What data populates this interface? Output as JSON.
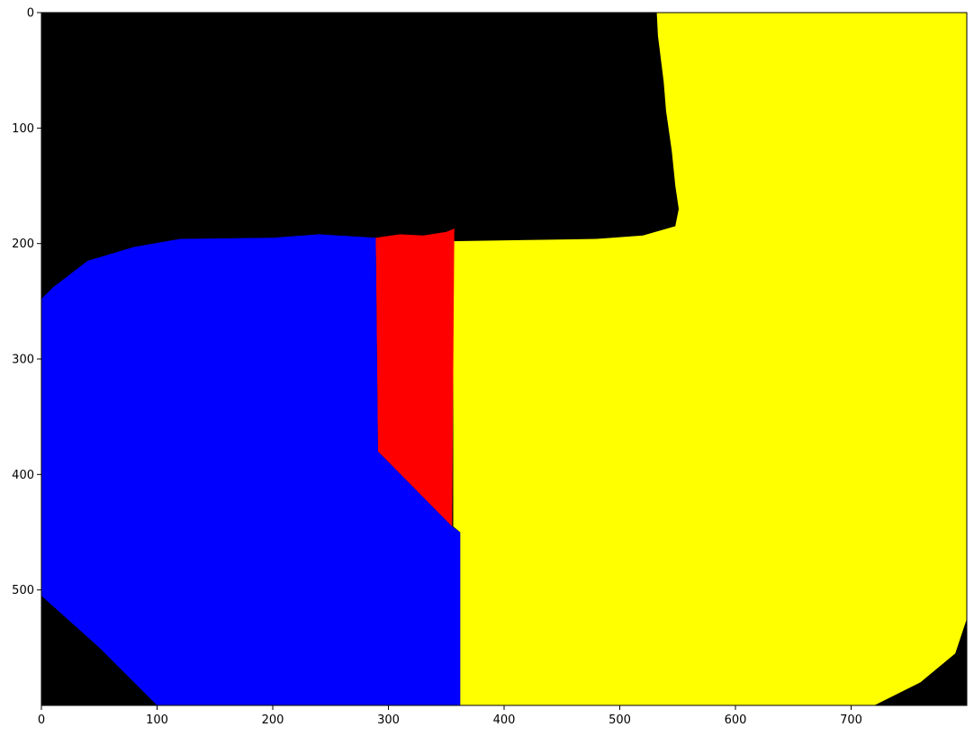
{
  "chart_data": {
    "type": "heatmap",
    "title": "",
    "xlabel": "",
    "ylabel": "",
    "xlim": [
      0,
      800
    ],
    "ylim": [
      600,
      0
    ],
    "x_ticks": [
      "0",
      "100",
      "200",
      "300",
      "400",
      "500",
      "600",
      "700"
    ],
    "x_tick_values": [
      0,
      100,
      200,
      300,
      400,
      500,
      600,
      700
    ],
    "y_ticks": [
      "0",
      "100",
      "200",
      "300",
      "400",
      "500"
    ],
    "y_tick_values": [
      0,
      100,
      200,
      300,
      400,
      500
    ],
    "colors": {
      "background": "#000000",
      "blue": "#0000ff",
      "red": "#ff0000",
      "yellow": "#ffff00"
    },
    "regions": [
      {
        "color": "#ffff00",
        "polygon": [
          [
            512,
            0
          ],
          [
            532,
            0
          ],
          [
            533,
            20
          ],
          [
            538,
            60
          ],
          [
            540,
            85
          ],
          [
            545,
            120
          ],
          [
            548,
            150
          ],
          [
            551,
            170
          ],
          [
            548,
            185
          ],
          [
            520,
            193
          ],
          [
            480,
            196
          ],
          [
            420,
            197
          ],
          [
            356,
            198
          ],
          [
            356,
            445
          ],
          [
            362,
            450
          ],
          [
            362,
            600
          ],
          [
            720,
            600
          ],
          [
            760,
            580
          ],
          [
            790,
            555
          ],
          [
            800,
            525
          ],
          [
            800,
            0
          ]
        ]
      },
      {
        "color": "#ff0000",
        "polygon": [
          [
            289,
            195
          ],
          [
            310,
            192
          ],
          [
            330,
            193
          ],
          [
            350,
            190
          ],
          [
            357,
            187
          ],
          [
            355,
            445
          ],
          [
            291,
            380
          ]
        ]
      },
      {
        "color": "#0000ff",
        "polygon": [
          [
            0,
            248
          ],
          [
            10,
            238
          ],
          [
            40,
            215
          ],
          [
            80,
            203
          ],
          [
            120,
            196
          ],
          [
            200,
            195
          ],
          [
            240,
            192
          ],
          [
            289,
            195
          ],
          [
            291,
            380
          ],
          [
            355,
            445
          ],
          [
            362,
            450
          ],
          [
            362,
            600
          ],
          [
            100,
            600
          ],
          [
            50,
            550
          ],
          [
            0,
            505
          ]
        ]
      }
    ]
  }
}
